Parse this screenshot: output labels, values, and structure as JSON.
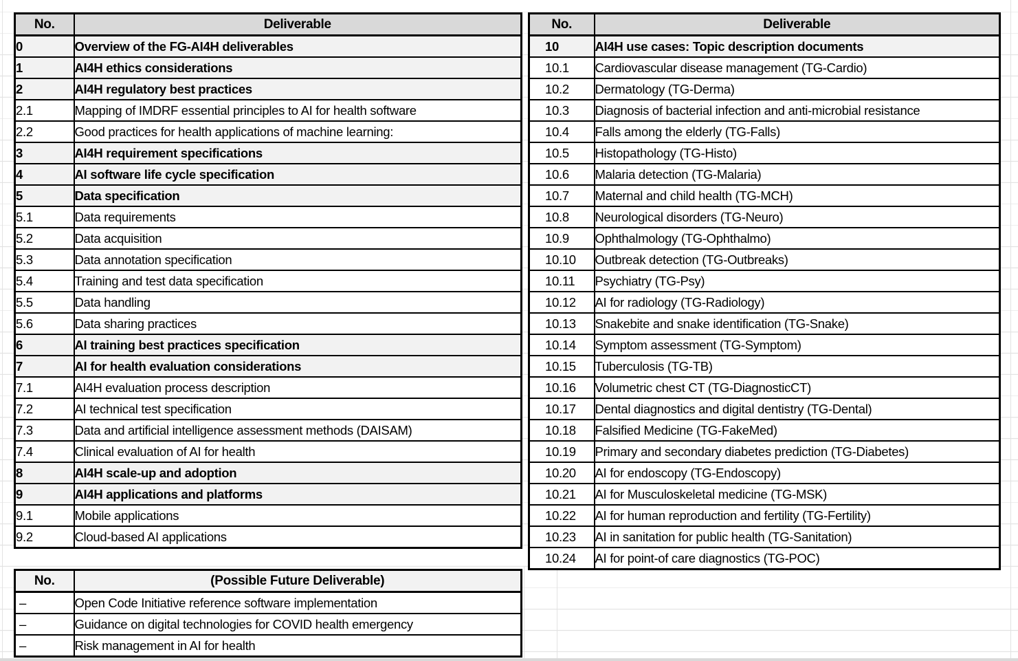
{
  "colors": {
    "header_bg": "#d9d9d9",
    "section_bg": "#f2f2f2",
    "border": "#000000",
    "gridline": "#e2e2e2"
  },
  "tables": {
    "left": {
      "headers": {
        "no": "No.",
        "deliverable": "Deliverable"
      },
      "rows": [
        {
          "no": "0",
          "text": "Overview of the FG-AI4H deliverables",
          "section": true
        },
        {
          "no": "1",
          "text": "AI4H ethics considerations",
          "section": true
        },
        {
          "no": "2",
          "text": "AI4H regulatory best practices",
          "section": true
        },
        {
          "no": "2.1",
          "text": "Mapping of IMDRF essential principles to AI for health software",
          "section": false
        },
        {
          "no": "2.2",
          "text": "Good practices for health applications of machine learning:",
          "section": false
        },
        {
          "no": "3",
          "text": "AI4H requirement specifications",
          "section": true
        },
        {
          "no": "4",
          "text": "AI software life cycle specification",
          "section": true
        },
        {
          "no": "5",
          "text": "Data specification",
          "section": true
        },
        {
          "no": "5.1",
          "text": "Data requirements",
          "section": false
        },
        {
          "no": "5.2",
          "text": "Data acquisition",
          "section": false
        },
        {
          "no": "5.3",
          "text": "Data annotation specification",
          "section": false
        },
        {
          "no": "5.4",
          "text": "Training and test data specification",
          "section": false
        },
        {
          "no": "5.5",
          "text": "Data handling",
          "section": false
        },
        {
          "no": "5.6",
          "text": "Data sharing practices",
          "section": false
        },
        {
          "no": "6",
          "text": "AI training best practices specification",
          "section": true
        },
        {
          "no": "7",
          "text": "AI for health evaluation considerations",
          "section": true
        },
        {
          "no": "7.1",
          "text": "AI4H evaluation process description",
          "section": false
        },
        {
          "no": "7.2",
          "text": "AI technical test specification",
          "section": false
        },
        {
          "no": "7.3",
          "text": "Data and artificial intelligence assessment methods (DAISAM)",
          "section": false
        },
        {
          "no": "7.4",
          "text": "Clinical evaluation of AI for health",
          "section": false
        },
        {
          "no": "8",
          "text": "AI4H scale-up and adoption",
          "section": true
        },
        {
          "no": "9",
          "text": "AI4H applications and platforms",
          "section": true
        },
        {
          "no": "9.1",
          "text": "Mobile applications",
          "section": false
        },
        {
          "no": "9.2",
          "text": "Cloud-based AI applications",
          "section": false
        }
      ]
    },
    "right": {
      "headers": {
        "no": "No.",
        "deliverable": "Deliverable"
      },
      "rows": [
        {
          "no": "10",
          "text": "AI4H use cases: Topic description documents",
          "section": true
        },
        {
          "no": "10.1",
          "text": "Cardiovascular disease management (TG-Cardio)",
          "section": false
        },
        {
          "no": "10.2",
          "text": "Dermatology (TG-Derma)",
          "section": false
        },
        {
          "no": "10.3",
          "text": "Diagnosis of bacterial infection and anti-microbial resistance",
          "section": false
        },
        {
          "no": "10.4",
          "text": "Falls among the elderly (TG-Falls)",
          "section": false
        },
        {
          "no": "10.5",
          "text": "Histopathology (TG-Histo)",
          "section": false
        },
        {
          "no": "10.6",
          "text": "Malaria detection (TG-Malaria)",
          "section": false
        },
        {
          "no": "10.7",
          "text": "Maternal and child health (TG-MCH)",
          "section": false
        },
        {
          "no": "10.8",
          "text": "Neurological disorders (TG-Neuro)",
          "section": false
        },
        {
          "no": "10.9",
          "text": "Ophthalmology (TG-Ophthalmo)",
          "section": false
        },
        {
          "no": "10.10",
          "text": "Outbreak detection (TG-Outbreaks)",
          "section": false
        },
        {
          "no": "10.11",
          "text": "Psychiatry (TG-Psy)",
          "section": false
        },
        {
          "no": "10.12",
          "text": "AI for radiology (TG-Radiology)",
          "section": false
        },
        {
          "no": "10.13",
          "text": "Snakebite and snake identification (TG-Snake)",
          "section": false
        },
        {
          "no": "10.14",
          "text": "Symptom assessment (TG-Symptom)",
          "section": false
        },
        {
          "no": "10.15",
          "text": "Tuberculosis (TG-TB)",
          "section": false
        },
        {
          "no": "10.16",
          "text": "Volumetric chest CT (TG-DiagnosticCT)",
          "section": false
        },
        {
          "no": "10.17",
          "text": "Dental diagnostics and digital dentistry (TG-Dental)",
          "section": false
        },
        {
          "no": "10.18",
          "text": "Falsified Medicine (TG-FakeMed)",
          "section": false
        },
        {
          "no": "10.19",
          "text": "Primary and secondary diabetes prediction (TG-Diabetes)",
          "section": false
        },
        {
          "no": "10.20",
          "text": "AI for endoscopy (TG-Endoscopy)",
          "section": false
        },
        {
          "no": "10.21",
          "text": "AI for Musculoskeletal medicine (TG-MSK)",
          "section": false
        },
        {
          "no": "10.22",
          "text": "AI for human reproduction and fertility (TG-Fertility)",
          "section": false
        },
        {
          "no": "10.23",
          "text": "AI in sanitation for public health (TG-Sanitation)",
          "section": false
        },
        {
          "no": "10.24",
          "text": "AI for point-of care diagnostics (TG-POC)",
          "section": false
        }
      ]
    },
    "future": {
      "headers": {
        "no": "No.",
        "deliverable": "(Possible Future Deliverable)"
      },
      "rows": [
        {
          "no": "–",
          "text": "Open Code Initiative reference software implementation",
          "section": false
        },
        {
          "no": "–",
          "text": "Guidance on digital technologies for COVID health emergency",
          "section": false
        },
        {
          "no": "–",
          "text": "Risk management in AI for health",
          "section": false
        }
      ]
    }
  }
}
